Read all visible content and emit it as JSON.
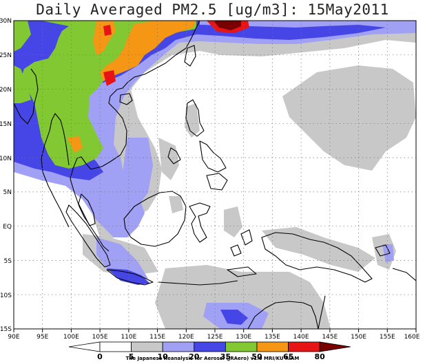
{
  "title": "Daily Averaged PM2.5 [ug/m3]: 15May2011",
  "credit": "The Japanese Reanalysis for Aerosol (JRAero) v1.0 MRI/KU RIAM",
  "map": {
    "region": {
      "lon": [
        90,
        160
      ],
      "lat": [
        -15,
        30
      ]
    },
    "lat_labels": [
      "30N",
      "25N",
      "20N",
      "15N",
      "10N",
      "5N",
      "EQ",
      "5S",
      "10S",
      "15S"
    ],
    "lon_labels": [
      "90E",
      "95E",
      "100E",
      "105E",
      "110E",
      "115E",
      "120E",
      "125E",
      "130E",
      "135E",
      "140E",
      "145E",
      "150E",
      "155E",
      "160E"
    ],
    "grid": "dotted"
  },
  "legend": {
    "levels": [
      "0",
      "5",
      "10",
      "20",
      "35",
      "50",
      "65",
      "80"
    ],
    "colors": [
      "#ffffff",
      "#ffffff",
      "#c8c8c8",
      "#a0a0f5",
      "#4646e6",
      "#82c832",
      "#f59614",
      "#e61414",
      "#780000"
    ]
  }
}
